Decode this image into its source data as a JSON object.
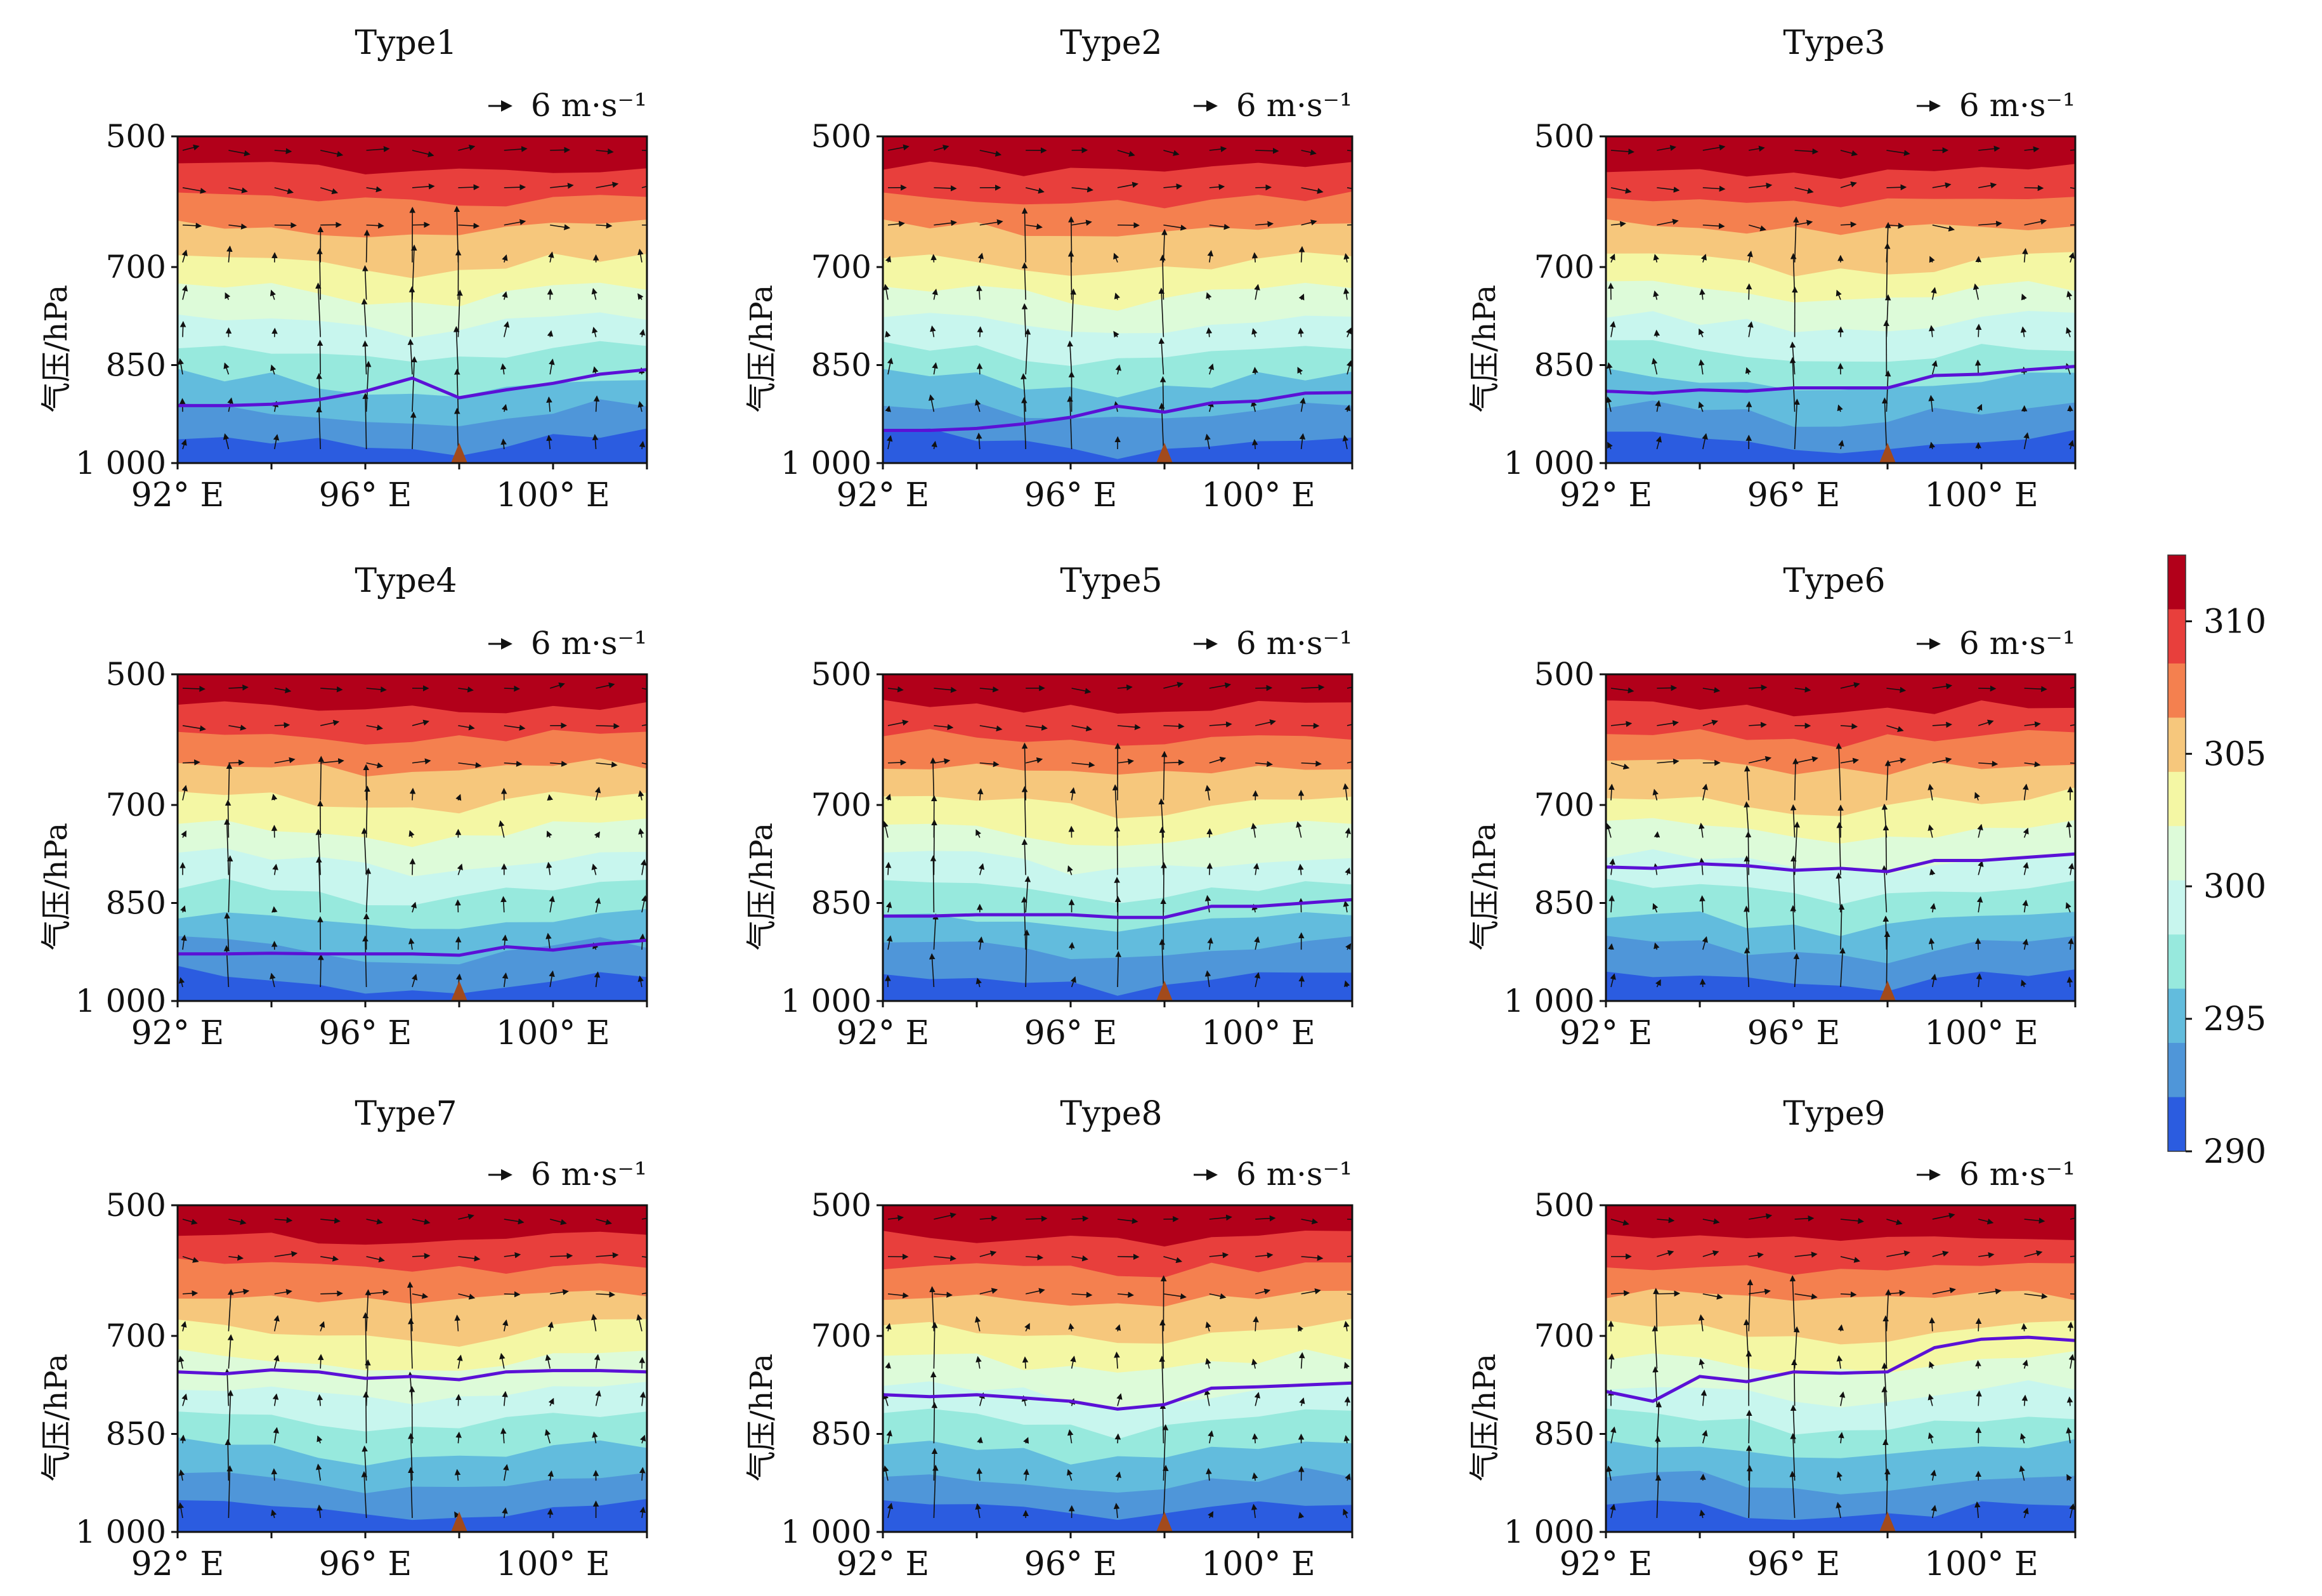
{
  "figure": {
    "ylabel": "气压/hPa",
    "ref_vector_label": "6 m·s⁻¹",
    "colorbar": {
      "ticks": [
        "310",
        "305",
        "300",
        "295",
        "290"
      ],
      "colors": [
        "#b2001a",
        "#e83f3c",
        "#f4804f",
        "#f6c77c",
        "#f4f7a4",
        "#ddfbd9",
        "#c8f6ee",
        "#97e9dd",
        "#62bcdd",
        "#4f96d9",
        "#2b5ce0"
      ],
      "min": 290,
      "max": 312.5
    }
  },
  "chart_data": [
    {
      "type": "contourf",
      "title": "Type1",
      "x_ticks": [
        "92° E",
        "96° E",
        "100° E"
      ],
      "y_ticks": [
        "500",
        "700",
        "850",
        "1 000"
      ],
      "xlim": [
        92,
        102
      ],
      "ylim_hpa": [
        1000,
        500
      ],
      "terrain_marker_lon": 98,
      "series": [
        {
          "name": "purple_line",
          "lon": [
            92,
            93,
            94,
            95,
            96,
            97,
            98,
            99,
            100,
            101,
            102
          ],
          "p": [
            912,
            912,
            910,
            903,
            890,
            870,
            900,
            888,
            878,
            864,
            857
          ]
        }
      ]
    },
    {
      "type": "contourf",
      "title": "Type2",
      "x_ticks": [
        "92° E",
        "96° E",
        "100° E"
      ],
      "y_ticks": [
        "500",
        "700",
        "850",
        "1 000"
      ],
      "xlim": [
        92,
        102
      ],
      "ylim_hpa": [
        1000,
        500
      ],
      "terrain_marker_lon": 98,
      "series": [
        {
          "name": "purple_line",
          "lon": [
            92,
            93,
            94,
            95,
            96,
            97,
            98,
            99,
            100,
            101,
            102
          ],
          "p": [
            950,
            950,
            947,
            940,
            930,
            913,
            922,
            908,
            905,
            893,
            892
          ]
        }
      ]
    },
    {
      "type": "contourf",
      "title": "Type3",
      "x_ticks": [
        "92° E",
        "96° E",
        "100° E"
      ],
      "y_ticks": [
        "500",
        "700",
        "850",
        "1 000"
      ],
      "xlim": [
        92,
        102
      ],
      "ylim_hpa": [
        1000,
        500
      ],
      "terrain_marker_lon": 98,
      "series": [
        {
          "name": "purple_line",
          "lon": [
            92,
            93,
            94,
            95,
            96,
            97,
            98,
            99,
            100,
            101,
            102
          ],
          "p": [
            890,
            893,
            888,
            890,
            885,
            885,
            885,
            866,
            864,
            857,
            852
          ]
        }
      ]
    },
    {
      "type": "contourf",
      "title": "Type4",
      "x_ticks": [
        "92° E",
        "96° E",
        "100° E"
      ],
      "y_ticks": [
        "500",
        "700",
        "850",
        "1 000"
      ],
      "xlim": [
        92,
        102
      ],
      "ylim_hpa": [
        1000,
        500
      ],
      "terrain_marker_lon": 98,
      "series": [
        {
          "name": "purple_line",
          "lon": [
            92,
            93,
            94,
            95,
            96,
            97,
            98,
            99,
            100,
            101,
            102
          ],
          "p": [
            928,
            928,
            927,
            928,
            928,
            928,
            930,
            917,
            922,
            913,
            907
          ]
        }
      ]
    },
    {
      "type": "contourf",
      "title": "Type5",
      "x_ticks": [
        "92° E",
        "96° E",
        "100° E"
      ],
      "y_ticks": [
        "500",
        "700",
        "850",
        "1 000"
      ],
      "xlim": [
        92,
        102
      ],
      "ylim_hpa": [
        1000,
        500
      ],
      "terrain_marker_lon": 98,
      "series": [
        {
          "name": "purple_line",
          "lon": [
            92,
            93,
            94,
            95,
            96,
            97,
            98,
            99,
            100,
            101,
            102
          ],
          "p": [
            870,
            870,
            868,
            868,
            868,
            872,
            872,
            855,
            855,
            850,
            845
          ]
        }
      ]
    },
    {
      "type": "contourf",
      "title": "Type6",
      "x_ticks": [
        "92° E",
        "96° E",
        "100° E"
      ],
      "y_ticks": [
        "500",
        "700",
        "850",
        "1 000"
      ],
      "xlim": [
        92,
        102
      ],
      "ylim_hpa": [
        1000,
        500
      ],
      "terrain_marker_lon": 98,
      "series": [
        {
          "name": "purple_line",
          "lon": [
            92,
            93,
            94,
            95,
            96,
            97,
            98,
            99,
            100,
            101,
            102
          ],
          "p": [
            795,
            797,
            790,
            793,
            800,
            797,
            802,
            785,
            785,
            780,
            775
          ]
        }
      ]
    },
    {
      "type": "contourf",
      "title": "Type7",
      "x_ticks": [
        "92° E",
        "96° E",
        "100° E"
      ],
      "y_ticks": [
        "500",
        "700",
        "850",
        "1 000"
      ],
      "xlim": [
        92,
        102
      ],
      "ylim_hpa": [
        1000,
        500
      ],
      "terrain_marker_lon": 98,
      "series": [
        {
          "name": "purple_line",
          "lon": [
            92,
            93,
            94,
            95,
            96,
            97,
            98,
            99,
            100,
            101,
            102
          ],
          "p": [
            755,
            758,
            752,
            755,
            765,
            762,
            767,
            755,
            753,
            753,
            755
          ]
        }
      ]
    },
    {
      "type": "contourf",
      "title": "Type8",
      "x_ticks": [
        "92° E",
        "96° E",
        "100° E"
      ],
      "y_ticks": [
        "500",
        "700",
        "850",
        "1 000"
      ],
      "xlim": [
        92,
        102
      ],
      "ylim_hpa": [
        1000,
        500
      ],
      "terrain_marker_lon": 98,
      "series": [
        {
          "name": "purple_line",
          "lon": [
            92,
            93,
            94,
            95,
            96,
            97,
            98,
            99,
            100,
            101,
            102
          ],
          "p": [
            790,
            793,
            790,
            795,
            800,
            812,
            805,
            780,
            778,
            775,
            772
          ]
        }
      ]
    },
    {
      "type": "contourf",
      "title": "Type9",
      "x_ticks": [
        "92° E",
        "96° E",
        "100° E"
      ],
      "y_ticks": [
        "500",
        "700",
        "850",
        "1 000"
      ],
      "xlim": [
        92,
        102
      ],
      "ylim_hpa": [
        1000,
        500
      ],
      "terrain_marker_lon": 98,
      "series": [
        {
          "name": "purple_line",
          "lon": [
            92,
            93,
            94,
            95,
            96,
            97,
            98,
            99,
            100,
            101,
            102
          ],
          "p": [
            785,
            800,
            762,
            770,
            755,
            757,
            755,
            718,
            705,
            702,
            707
          ]
        }
      ]
    }
  ]
}
